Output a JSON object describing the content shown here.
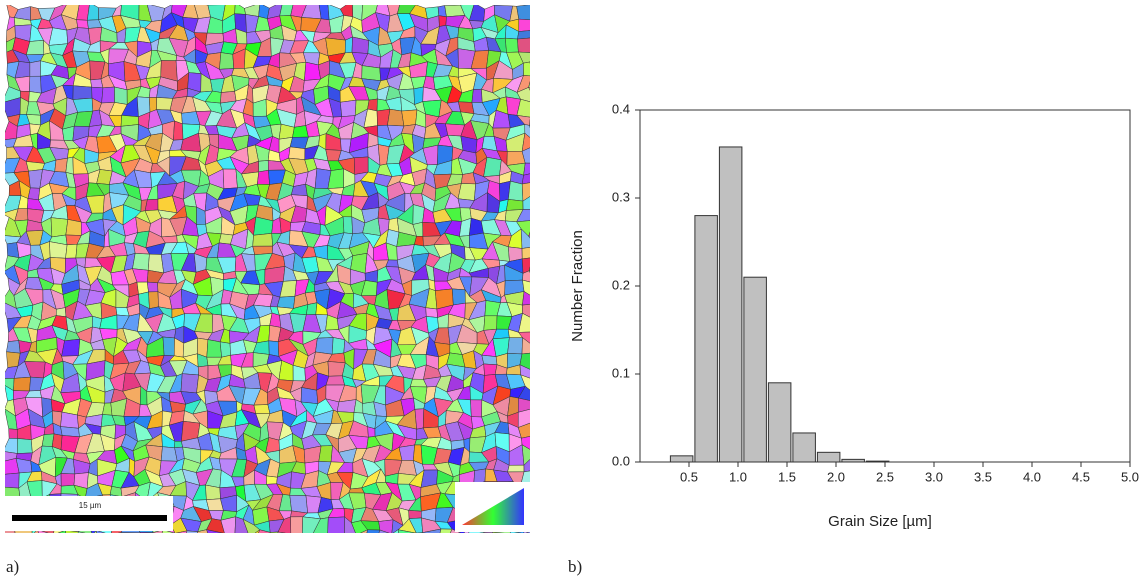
{
  "panel_labels": [
    "a)",
    "b)"
  ],
  "map": {
    "scale_bar": "15 µm"
  },
  "chart_data": {
    "type": "histogram",
    "x_label": "Grain Size [µm]",
    "y_label": "Number Fraction",
    "bins": [
      0.3,
      0.55,
      0.8,
      1.05,
      1.3,
      1.55,
      1.8,
      2.05,
      2.3,
      2.55
    ],
    "values": [
      0.007,
      0.28,
      0.358,
      0.21,
      0.09,
      0.033,
      0.011,
      0.003,
      0.001
    ],
    "color": "#c0c0c0",
    "xlim": [
      0,
      5
    ],
    "ylim": [
      0,
      0.4
    ],
    "xticks": [
      0.5,
      {
        "value": 1,
        "label": "1.0"
      },
      1.5,
      {
        "value": 2,
        "label": "2.0"
      },
      2.5,
      {
        "value": 3,
        "label": "3.0"
      },
      3.5,
      {
        "value": 4,
        "label": "4.0"
      },
      4.5,
      {
        "value": 5,
        "label": "5.0"
      }
    ],
    "yticks": [
      {
        "value": 0,
        "label": "0.0"
      },
      0.1,
      0.2,
      0.3,
      0.4
    ]
  }
}
